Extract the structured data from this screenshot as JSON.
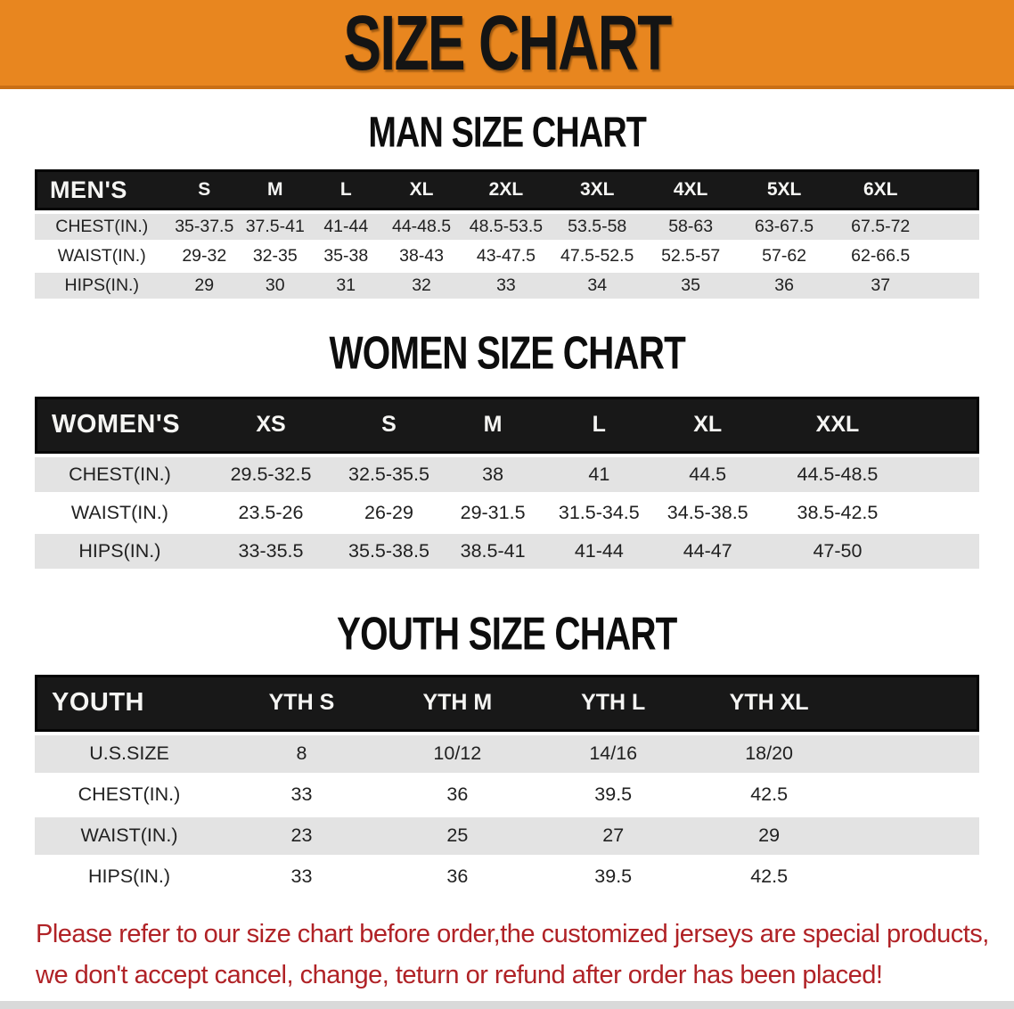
{
  "banner": {
    "title": "SIZE CHART",
    "background_color": "#e8861f"
  },
  "sections": [
    {
      "heading": "MAN SIZE CHART",
      "table": {
        "label_header": "MEN'S",
        "size_headers": [
          "S",
          "M",
          "L",
          "XL",
          "2XL",
          "3XL",
          "4XL",
          "5XL",
          "6XL"
        ],
        "rows": [
          {
            "label": "CHEST(IN.)",
            "values": [
              "35-37.5",
              "37.5-41",
              "41-44",
              "44-48.5",
              "48.5-53.5",
              "53.5-58",
              "58-63",
              "63-67.5",
              "67.5-72"
            ]
          },
          {
            "label": "WAIST(IN.)",
            "values": [
              "29-32",
              "32-35",
              "35-38",
              "38-43",
              "43-47.5",
              "47.5-52.5",
              "52.5-57",
              "57-62",
              "62-66.5"
            ]
          },
          {
            "label": "HIPS(IN.)",
            "values": [
              "29",
              "30",
              "31",
              "32",
              "33",
              "34",
              "35",
              "36",
              "37"
            ]
          }
        ]
      }
    },
    {
      "heading": "WOMEN SIZE CHART",
      "table": {
        "label_header": "WOMEN'S",
        "size_headers": [
          "XS",
          "S",
          "M",
          "L",
          "XL",
          "XXL"
        ],
        "rows": [
          {
            "label": "CHEST(IN.)",
            "values": [
              "29.5-32.5",
              "32.5-35.5",
              "38",
              "41",
              "44.5",
              "44.5-48.5"
            ]
          },
          {
            "label": "WAIST(IN.)",
            "values": [
              "23.5-26",
              "26-29",
              "29-31.5",
              "31.5-34.5",
              "34.5-38.5",
              "38.5-42.5"
            ]
          },
          {
            "label": "HIPS(IN.)",
            "values": [
              "33-35.5",
              "35.5-38.5",
              "38.5-41",
              "41-44",
              "44-47",
              "47-50"
            ]
          }
        ]
      }
    },
    {
      "heading": "YOUTH SIZE CHART",
      "table": {
        "label_header": "YOUTH",
        "size_headers": [
          "YTH S",
          "YTH M",
          "YTH L",
          "YTH XL"
        ],
        "rows": [
          {
            "label": "U.S.SIZE",
            "values": [
              "8",
              "10/12",
              "14/16",
              "18/20"
            ]
          },
          {
            "label": "CHEST(IN.)",
            "values": [
              "33",
              "36",
              "39.5",
              "42.5"
            ]
          },
          {
            "label": "WAIST(IN.)",
            "values": [
              "23",
              "25",
              "27",
              "29"
            ]
          },
          {
            "label": "HIPS(IN.)",
            "values": [
              "33",
              "36",
              "39.5",
              "42.5"
            ]
          }
        ]
      }
    }
  ],
  "footer": {
    "line1": "Please refer to our size chart before order,the customized jerseys are special products,",
    "line2": "we don't accept cancel, change, teturn or refund after order has been placed!",
    "text_color": "#b02226"
  }
}
